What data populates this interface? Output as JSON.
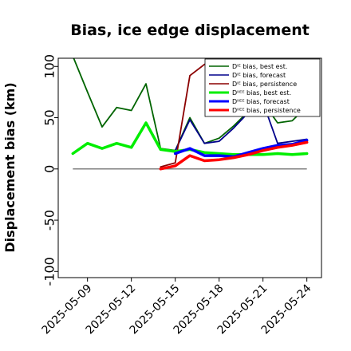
{
  "chart_data": {
    "type": "line",
    "title": "Bias, ice edge displacement",
    "ylabel": "Displacement bias (km)",
    "xlabel": "",
    "ylim": [
      -106,
      108
    ],
    "xlim": [
      "2025-05-07",
      "2025-05-25"
    ],
    "yticks": [
      -100,
      -50,
      0,
      50,
      100
    ],
    "xticks": [
      {
        "date": "2025-05-09",
        "label": "2025-05-09",
        "color": "#000000"
      },
      {
        "date": "2025-05-12",
        "label": "2025-05-12",
        "color": "#000000"
      },
      {
        "date": "2025-05-15",
        "label": "2025-05-15",
        "color": "#228b22"
      },
      {
        "date": "2025-05-18",
        "label": "2025-05-18",
        "color": "#000000"
      },
      {
        "date": "2025-05-21",
        "label": "2025-05-21",
        "color": "#000000"
      },
      {
        "date": "2025-05-24",
        "label": "2025-05-24",
        "color": "#000000"
      }
    ],
    "reference_line": {
      "y": 0,
      "from": "2025-05-08",
      "to": "2025-05-24",
      "color": "#808080"
    },
    "grid": false,
    "legend_position": "upper-right",
    "series": [
      {
        "name": "Dᴵᴱ bias, best est.",
        "color": "#006400",
        "width": 1.8,
        "points": [
          [
            "2025-05-08",
            110
          ],
          [
            "2025-05-09",
            75
          ],
          [
            "2025-05-10",
            41
          ],
          [
            "2025-05-11",
            60
          ],
          [
            "2025-05-12",
            57
          ],
          [
            "2025-05-13",
            83
          ],
          [
            "2025-05-14",
            20
          ],
          [
            "2025-05-15",
            18
          ],
          [
            "2025-05-16",
            50
          ],
          [
            "2025-05-17",
            25
          ],
          [
            "2025-05-18",
            30
          ],
          [
            "2025-05-19",
            42
          ],
          [
            "2025-05-20",
            56
          ],
          [
            "2025-05-21",
            65
          ],
          [
            "2025-05-22",
            45
          ],
          [
            "2025-05-23",
            47
          ],
          [
            "2025-05-24",
            61
          ]
        ]
      },
      {
        "name": "Dᴵᴱ bias, forecast",
        "color": "#00008b",
        "width": 1.8,
        "points": [
          [
            "2025-05-15",
            18
          ],
          [
            "2025-05-16",
            48
          ],
          [
            "2025-05-17",
            25
          ],
          [
            "2025-05-18",
            27
          ],
          [
            "2025-05-19",
            40
          ],
          [
            "2025-05-20",
            55
          ],
          [
            "2025-05-21",
            65
          ],
          [
            "2025-05-22",
            25
          ],
          [
            "2025-05-23",
            27
          ],
          [
            "2025-05-24",
            29
          ]
        ]
      },
      {
        "name": "Dᴵᴱ bias, persistence",
        "color": "#8b0000",
        "width": 1.8,
        "points": [
          [
            "2025-05-14",
            2
          ],
          [
            "2025-05-15",
            6
          ],
          [
            "2025-05-16",
            91
          ],
          [
            "2025-05-17",
            102
          ],
          [
            "2025-05-18",
            103
          ],
          [
            "2025-05-19",
            104
          ],
          [
            "2025-05-20",
            105
          ],
          [
            "2025-05-21",
            106
          ]
        ]
      },
      {
        "name": "Dᴵᴵᴱᴱ bias, best est.",
        "color": "#00ee00",
        "width": 3.5,
        "points": [
          [
            "2025-05-08",
            15
          ],
          [
            "2025-05-09",
            25
          ],
          [
            "2025-05-10",
            20
          ],
          [
            "2025-05-11",
            25
          ],
          [
            "2025-05-12",
            21
          ],
          [
            "2025-05-13",
            45
          ],
          [
            "2025-05-14",
            19
          ],
          [
            "2025-05-15",
            17
          ],
          [
            "2025-05-16",
            19
          ],
          [
            "2025-05-17",
            16
          ],
          [
            "2025-05-18",
            15
          ],
          [
            "2025-05-19",
            14
          ],
          [
            "2025-05-20",
            14
          ],
          [
            "2025-05-21",
            14
          ],
          [
            "2025-05-22",
            15
          ],
          [
            "2025-05-23",
            14
          ],
          [
            "2025-05-24",
            15
          ]
        ]
      },
      {
        "name": "Dᴵᴵᴱᴱ bias, forecast",
        "color": "#0000ff",
        "width": 3.5,
        "points": [
          [
            "2025-05-15",
            15
          ],
          [
            "2025-05-16",
            20
          ],
          [
            "2025-05-17",
            13
          ],
          [
            "2025-05-18",
            13
          ],
          [
            "2025-05-19",
            12
          ],
          [
            "2025-05-20",
            16
          ],
          [
            "2025-05-21",
            20
          ],
          [
            "2025-05-22",
            23
          ],
          [
            "2025-05-23",
            24
          ],
          [
            "2025-05-24",
            28
          ]
        ]
      },
      {
        "name": "Dᴵᴵᴱᴱ bias, persistence",
        "color": "#ff0000",
        "width": 3.5,
        "points": [
          [
            "2025-05-14",
            0
          ],
          [
            "2025-05-15",
            3
          ],
          [
            "2025-05-16",
            13
          ],
          [
            "2025-05-17",
            8
          ],
          [
            "2025-05-18",
            9
          ],
          [
            "2025-05-19",
            11
          ],
          [
            "2025-05-20",
            14
          ],
          [
            "2025-05-21",
            18
          ],
          [
            "2025-05-22",
            21
          ],
          [
            "2025-05-23",
            23
          ],
          [
            "2025-05-24",
            26
          ]
        ]
      }
    ]
  }
}
